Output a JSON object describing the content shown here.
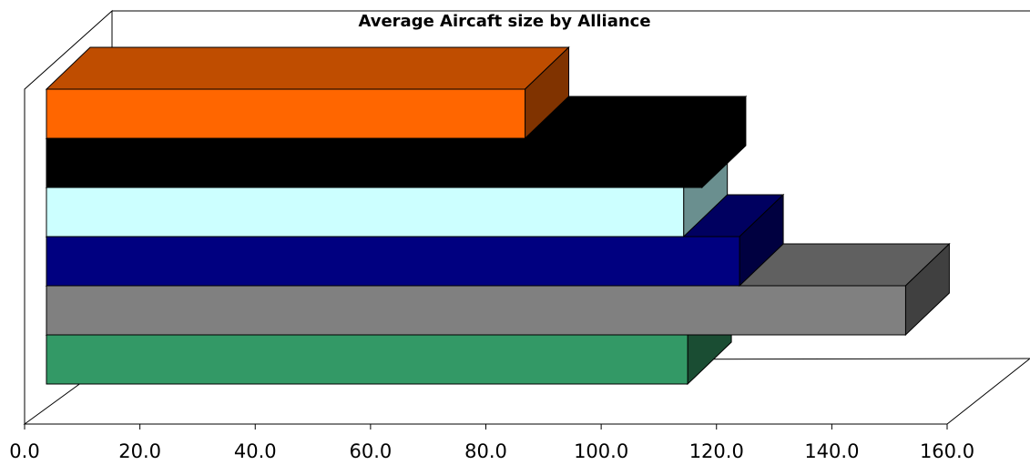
{
  "chart_data": {
    "type": "bar",
    "orientation": "horizontal",
    "style": "3d",
    "title": "Average Aircaft size by Alliance",
    "xlabel": "",
    "ylabel": "",
    "xlim": [
      0,
      160
    ],
    "x_ticks": [
      "0.0",
      "20.0",
      "40.0",
      "60.0",
      "80.0",
      "100.0",
      "120.0",
      "140.0",
      "160.0"
    ],
    "grid": false,
    "legend": "none",
    "bars": [
      {
        "value": 86.8,
        "color": "#ff6600"
      },
      {
        "value": 117.5,
        "color": "#000000"
      },
      {
        "value": 114.3,
        "color": "#ccffff"
      },
      {
        "value": 124.0,
        "color": "#000080"
      },
      {
        "value": 152.8,
        "color": "#808080"
      },
      {
        "value": 115.0,
        "color": "#339966"
      }
    ]
  }
}
